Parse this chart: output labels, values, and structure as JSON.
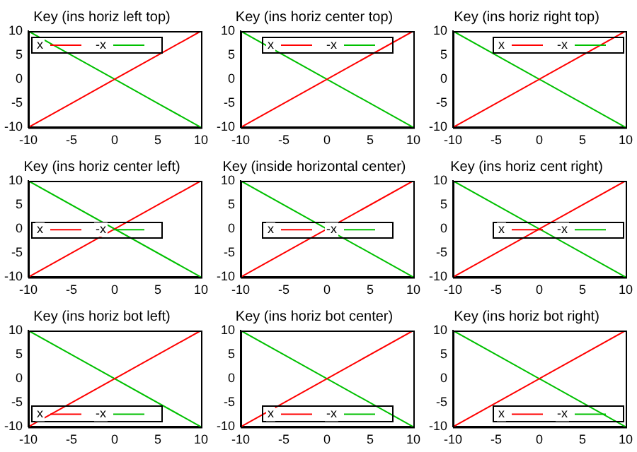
{
  "chart_data": [
    {
      "type": "line",
      "title": "Key (ins horiz left top)",
      "legend": "top left",
      "marker": "none",
      "grid": false,
      "xlim": [
        -10,
        10
      ],
      "xticks": [
        -10,
        -5,
        0,
        5,
        10
      ],
      "ylim": [
        -10,
        10
      ],
      "yticks": [
        -10,
        -5,
        0,
        5,
        10
      ],
      "series": [
        {
          "name": "x",
          "color": "#ff0000",
          "x": [
            -10,
            -5,
            0,
            5,
            10
          ],
          "values": [
            -10,
            -5,
            0,
            5,
            10
          ]
        },
        {
          "name": "-x",
          "color": "#00c000",
          "x": [
            -10,
            -5,
            0,
            5,
            10
          ],
          "values": [
            10,
            5,
            0,
            -5,
            -10
          ]
        }
      ]
    },
    {
      "type": "line",
      "title": "Key (ins horiz center top)",
      "legend": "top",
      "marker": "none",
      "grid": false,
      "xlim": [
        -10,
        10
      ],
      "xticks": [
        -10,
        -5,
        0,
        5,
        10
      ],
      "ylim": [
        -10,
        10
      ],
      "yticks": [
        -10,
        -5,
        0,
        5,
        10
      ],
      "series": [
        {
          "name": "x",
          "color": "#ff0000",
          "x": [
            -10,
            10
          ],
          "values": [
            -10,
            10
          ]
        },
        {
          "name": "-x",
          "color": "#00c000",
          "x": [
            -10,
            10
          ],
          "values": [
            10,
            -10
          ]
        }
      ]
    },
    {
      "type": "line",
      "title": "Key (ins horiz right top)",
      "legend": "top right",
      "marker": "none",
      "grid": false,
      "xlim": [
        -10,
        10
      ],
      "xticks": [
        -10,
        -5,
        0,
        5,
        10
      ],
      "ylim": [
        -10,
        10
      ],
      "yticks": [
        -10,
        -5,
        0,
        5,
        10
      ],
      "series": [
        {
          "name": "x",
          "color": "#ff0000",
          "x": [
            -10,
            10
          ],
          "values": [
            -10,
            10
          ]
        },
        {
          "name": "-x",
          "color": "#00c000",
          "x": [
            -10,
            10
          ],
          "values": [
            10,
            -10
          ]
        }
      ]
    },
    {
      "type": "line",
      "title": "Key (ins horiz center left)",
      "legend": "left",
      "marker": "none",
      "grid": false,
      "xlim": [
        -10,
        10
      ],
      "xticks": [
        -10,
        -5,
        0,
        5,
        10
      ],
      "ylim": [
        -10,
        10
      ],
      "yticks": [
        -10,
        -5,
        0,
        5,
        10
      ],
      "series": [
        {
          "name": "x",
          "color": "#ff0000",
          "x": [
            -10,
            10
          ],
          "values": [
            -10,
            10
          ]
        },
        {
          "name": "-x",
          "color": "#00c000",
          "x": [
            -10,
            10
          ],
          "values": [
            10,
            -10
          ]
        }
      ]
    },
    {
      "type": "line",
      "title": "Key (inside horizontal center)",
      "legend": "center",
      "marker": "none",
      "grid": false,
      "xlim": [
        -10,
        10
      ],
      "xticks": [
        -10,
        -5,
        0,
        5,
        10
      ],
      "ylim": [
        -10,
        10
      ],
      "yticks": [
        -10,
        -5,
        0,
        5,
        10
      ],
      "series": [
        {
          "name": "x",
          "color": "#ff0000",
          "x": [
            -10,
            10
          ],
          "values": [
            -10,
            10
          ]
        },
        {
          "name": "-x",
          "color": "#00c000",
          "x": [
            -10,
            10
          ],
          "values": [
            10,
            -10
          ]
        }
      ]
    },
    {
      "type": "line",
      "title": "Key (ins horiz cent right)",
      "legend": "right",
      "marker": "none",
      "grid": false,
      "xlim": [
        -10,
        10
      ],
      "xticks": [
        -10,
        -5,
        0,
        5,
        10
      ],
      "ylim": [
        -10,
        10
      ],
      "yticks": [
        -10,
        -5,
        0,
        5,
        10
      ],
      "series": [
        {
          "name": "x",
          "color": "#ff0000",
          "x": [
            -10,
            10
          ],
          "values": [
            -10,
            10
          ]
        },
        {
          "name": "-x",
          "color": "#00c000",
          "x": [
            -10,
            10
          ],
          "values": [
            10,
            -10
          ]
        }
      ]
    },
    {
      "type": "line",
      "title": "Key (ins horiz bot left)",
      "legend": "bottom left",
      "marker": "none",
      "grid": false,
      "xlim": [
        -10,
        10
      ],
      "xticks": [
        -10,
        -5,
        0,
        5,
        10
      ],
      "ylim": [
        -10,
        10
      ],
      "yticks": [
        -10,
        -5,
        0,
        5,
        10
      ],
      "series": [
        {
          "name": "x",
          "color": "#ff0000",
          "x": [
            -10,
            10
          ],
          "values": [
            -10,
            10
          ]
        },
        {
          "name": "-x",
          "color": "#00c000",
          "x": [
            -10,
            10
          ],
          "values": [
            10,
            -10
          ]
        }
      ]
    },
    {
      "type": "line",
      "title": "Key (ins horiz bot center)",
      "legend": "bottom",
      "marker": "none",
      "grid": false,
      "xlim": [
        -10,
        10
      ],
      "xticks": [
        -10,
        -5,
        0,
        5,
        10
      ],
      "ylim": [
        -10,
        10
      ],
      "yticks": [
        -10,
        -5,
        0,
        5,
        10
      ],
      "series": [
        {
          "name": "x",
          "color": "#ff0000",
          "x": [
            -10,
            10
          ],
          "values": [
            -10,
            10
          ]
        },
        {
          "name": "-x",
          "color": "#00c000",
          "x": [
            -10,
            10
          ],
          "values": [
            10,
            -10
          ]
        }
      ]
    },
    {
      "type": "line",
      "title": "Key (ins horiz bot right)",
      "legend": "bottom right",
      "marker": "none",
      "grid": false,
      "xlim": [
        -10,
        10
      ],
      "xticks": [
        -10,
        -5,
        0,
        5,
        10
      ],
      "ylim": [
        -10,
        10
      ],
      "yticks": [
        -10,
        -5,
        0,
        5,
        10
      ],
      "series": [
        {
          "name": "x",
          "color": "#ff0000",
          "x": [
            -10,
            10
          ],
          "values": [
            -10,
            10
          ]
        },
        {
          "name": "-x",
          "color": "#00c000",
          "x": [
            -10,
            10
          ],
          "values": [
            10,
            -10
          ]
        }
      ]
    }
  ]
}
